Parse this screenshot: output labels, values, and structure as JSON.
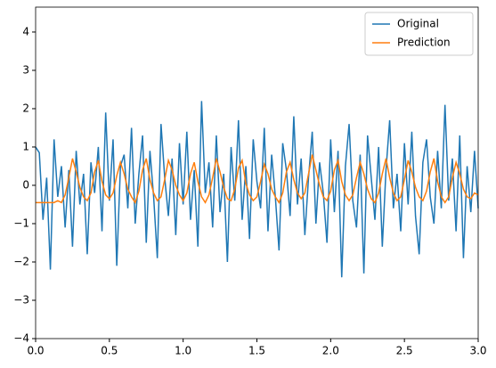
{
  "chart_data": {
    "type": "line",
    "x": [
      0,
      0.025,
      0.05,
      0.075,
      0.1,
      0.125,
      0.15,
      0.175,
      0.2,
      0.225,
      0.25,
      0.275,
      0.3,
      0.325,
      0.35,
      0.375,
      0.4,
      0.425,
      0.45,
      0.475,
      0.5,
      0.525,
      0.55,
      0.575,
      0.6,
      0.625,
      0.65,
      0.675,
      0.7,
      0.725,
      0.75,
      0.775,
      0.8,
      0.825,
      0.85,
      0.875,
      0.9,
      0.925,
      0.95,
      0.975,
      1,
      1.025,
      1.05,
      1.075,
      1.1,
      1.125,
      1.15,
      1.175,
      1.2,
      1.225,
      1.25,
      1.275,
      1.3,
      1.325,
      1.35,
      1.375,
      1.4,
      1.425,
      1.45,
      1.475,
      1.5,
      1.525,
      1.55,
      1.575,
      1.6,
      1.625,
      1.65,
      1.675,
      1.7,
      1.725,
      1.75,
      1.775,
      1.8,
      1.825,
      1.85,
      1.875,
      1.9,
      1.925,
      1.95,
      1.975,
      2,
      2.025,
      2.05,
      2.075,
      2.1,
      2.125,
      2.15,
      2.175,
      2.2,
      2.225,
      2.25,
      2.275,
      2.3,
      2.325,
      2.35,
      2.375,
      2.4,
      2.425,
      2.45,
      2.475,
      2.5,
      2.525,
      2.55,
      2.575,
      2.6,
      2.625,
      2.65,
      2.675,
      2.7,
      2.725,
      2.75,
      2.775,
      2.8,
      2.825,
      2.85,
      2.875,
      2.9,
      2.925,
      2.95,
      2.975,
      3
    ],
    "series": [
      {
        "name": "Original",
        "color": "#1f77b4",
        "values": [
          1.0,
          0.85,
          -0.9,
          0.2,
          -2.2,
          1.2,
          -0.3,
          0.5,
          -1.1,
          0.4,
          -1.6,
          0.9,
          -0.5,
          0.3,
          -1.8,
          0.6,
          -0.2,
          1.0,
          -1.2,
          1.9,
          -0.4,
          1.2,
          -2.1,
          0.5,
          0.8,
          -0.6,
          1.5,
          -1.0,
          0.3,
          1.3,
          -1.5,
          0.9,
          -0.3,
          -1.9,
          1.6,
          0.2,
          -0.8,
          0.7,
          -1.3,
          1.1,
          -0.5,
          1.4,
          -0.9,
          0.4,
          -1.6,
          2.2,
          -0.2,
          0.6,
          -1.1,
          1.3,
          -0.7,
          0.3,
          -2.0,
          1.0,
          -0.4,
          1.7,
          -0.9,
          0.5,
          -1.4,
          1.2,
          0.1,
          -0.6,
          1.5,
          -1.2,
          0.8,
          -0.3,
          -1.7,
          1.1,
          0.4,
          -0.8,
          1.8,
          -0.5,
          0.7,
          -1.3,
          0.2,
          1.4,
          -1.0,
          0.6,
          -0.2,
          -1.5,
          1.2,
          -0.7,
          0.9,
          -2.4,
          0.5,
          1.6,
          -0.4,
          -1.1,
          0.8,
          -2.3,
          1.3,
          0.2,
          -0.9,
          1.0,
          -1.6,
          0.4,
          1.7,
          -0.6,
          0.3,
          -1.2,
          1.1,
          -0.5,
          1.4,
          -0.8,
          -1.8,
          0.6,
          1.2,
          -0.3,
          -1.0,
          0.9,
          -0.6,
          2.1,
          -0.4,
          0.7,
          -1.2,
          1.3,
          -1.9,
          0.5,
          -0.7,
          0.9,
          -0.6
        ]
      },
      {
        "name": "Prediction",
        "color": "#ff7f0e",
        "values": [
          -0.45,
          -0.45,
          -0.45,
          -0.45,
          -0.45,
          -0.45,
          -0.4,
          -0.45,
          -0.25,
          0.2,
          0.7,
          0.35,
          -0.05,
          -0.3,
          -0.4,
          -0.2,
          0.35,
          0.65,
          0.1,
          -0.25,
          -0.35,
          -0.2,
          0.25,
          0.6,
          0.3,
          -0.1,
          -0.3,
          -0.45,
          -0.15,
          0.4,
          0.7,
          0.15,
          -0.2,
          -0.4,
          -0.3,
          0.15,
          0.65,
          0.4,
          0.0,
          -0.25,
          -0.4,
          -0.2,
          0.3,
          0.6,
          0.1,
          -0.3,
          -0.45,
          -0.25,
          0.2,
          0.7,
          0.35,
          -0.05,
          -0.35,
          -0.4,
          -0.1,
          0.45,
          0.65,
          0.05,
          -0.25,
          -0.4,
          -0.3,
          0.1,
          0.55,
          0.3,
          -0.1,
          -0.3,
          -0.45,
          -0.2,
          0.35,
          0.6,
          0.15,
          -0.2,
          -0.35,
          -0.2,
          0.3,
          0.8,
          0.4,
          0.0,
          -0.3,
          -0.4,
          -0.15,
          0.4,
          0.65,
          0.1,
          -0.25,
          -0.4,
          -0.25,
          0.2,
          0.6,
          0.3,
          -0.1,
          -0.35,
          -0.45,
          -0.2,
          0.3,
          0.7,
          0.2,
          -0.2,
          -0.4,
          -0.3,
          0.15,
          0.65,
          0.35,
          -0.05,
          -0.3,
          -0.4,
          -0.15,
          0.35,
          0.7,
          0.1,
          -0.3,
          -0.45,
          -0.3,
          0.2,
          0.6,
          0.3,
          -0.1,
          -0.3,
          -0.35,
          -0.2,
          -0.25
        ]
      }
    ],
    "xlim": [
      0,
      3
    ],
    "ylim": [
      -4,
      4.65
    ],
    "xticks": [
      {
        "value": 0,
        "label": "0.0"
      },
      0.5,
      {
        "value": 1,
        "label": "1.0"
      },
      1.5,
      {
        "value": 2,
        "label": "2.0"
      },
      2.5,
      {
        "value": 3,
        "label": "3.0"
      }
    ],
    "yticks": [
      {
        "value": -4,
        "label": "−4"
      },
      {
        "value": -3,
        "label": "−3"
      },
      {
        "value": -2,
        "label": "−2"
      },
      {
        "value": -1,
        "label": "−1"
      },
      0,
      1,
      2,
      3,
      4
    ],
    "legend": "upper right"
  }
}
